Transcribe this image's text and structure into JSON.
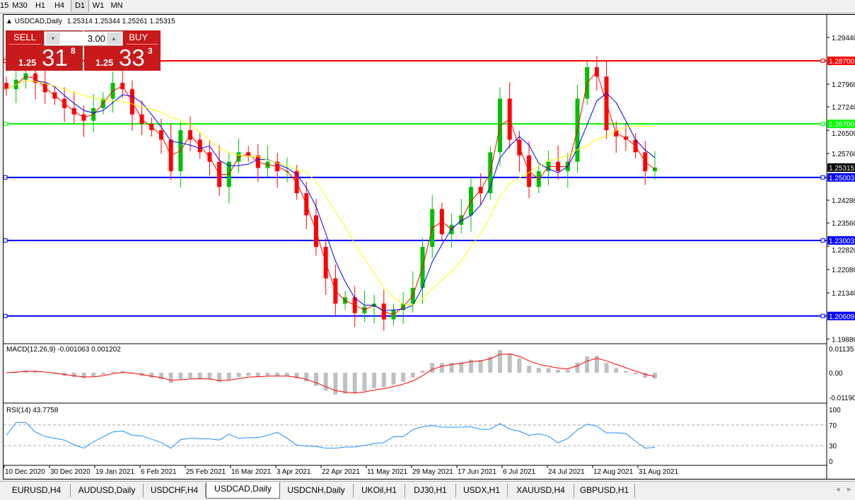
{
  "toolbar": {
    "timeframes": [
      {
        "label": "15"
      },
      {
        "label": "M30"
      },
      {
        "label": "H1"
      },
      {
        "label": "H4"
      },
      {
        "label": "D1",
        "active": true
      },
      {
        "label": "W1"
      },
      {
        "label": "MN"
      }
    ]
  },
  "chart": {
    "title": "USDCAD,Daily",
    "ohlc": "1.25314 1.25344 1.25261 1.25315",
    "trade": {
      "sell_label": "SELL",
      "buy_label": "BUY",
      "lot": "3.00",
      "sell_big": "1.25",
      "sell_digits": "31",
      "sell_sup": "8",
      "buy_big": "1.25",
      "buy_digits": "33",
      "buy_sup": "3"
    },
    "price_ticks": [
      "1.29440",
      "1.27960",
      "1.27240",
      "1.26500",
      "1.25760",
      "1.24280",
      "1.23560",
      "1.22820",
      "1.22080",
      "1.21340",
      "1.19880"
    ],
    "current_price": "1.25315",
    "levels": [
      {
        "price": "1.28700",
        "color": "#ff0000"
      },
      {
        "price": "1.26700",
        "color": "#00ff00"
      },
      {
        "price": "1.25003",
        "color": "#0000ff"
      },
      {
        "price": "1.23003",
        "color": "#0000ff"
      },
      {
        "price": "1.20609",
        "color": "#0000ff"
      }
    ],
    "date_ticks": [
      "10 Dec 2020",
      "30 Dec 2020",
      "19 Jan 2021",
      "6 Feb 2021",
      "25 Feb 2021",
      "16 Mar 2021",
      "3 Apr 2021",
      "22 Apr 2021",
      "11 May 2021",
      "29 May 2021",
      "17 Jun 2021",
      "6 Jul 2021",
      "24 Jul 2021",
      "12 Aug 2021",
      "31 Aug 2021"
    ],
    "colors": {
      "bull": "#00c000",
      "bear": "#ff0000",
      "ma_fast": "#ff0000",
      "ma_mid": "#0000ff",
      "ma_slow": "#ffff00"
    }
  },
  "macd": {
    "label": "MACD(12,26,9) -0.001063 0.001202",
    "ticks": [
      "0.01135",
      "0.00",
      "-0.01190"
    ]
  },
  "rsi": {
    "label": "RSI(14) 43.7758",
    "ticks": [
      "100",
      "70",
      "30",
      "0"
    ]
  },
  "chart_data": {
    "type": "candlestick",
    "symbol": "USDCAD",
    "timeframe": "Daily",
    "price_range": [
      1.1988,
      1.299
    ],
    "approx_closes": [
      1.278,
      1.281,
      1.283,
      1.28,
      1.277,
      1.275,
      1.272,
      1.27,
      1.268,
      1.272,
      1.275,
      1.28,
      1.278,
      1.27,
      1.267,
      1.265,
      1.262,
      1.252,
      1.265,
      1.262,
      1.258,
      1.255,
      1.247,
      1.255,
      1.258,
      1.257,
      1.253,
      1.255,
      1.252,
      1.252,
      1.245,
      1.238,
      1.228,
      1.218,
      1.21,
      1.212,
      1.207,
      1.209,
      1.21,
      1.205,
      1.208,
      1.21,
      1.215,
      1.228,
      1.24,
      1.232,
      1.235,
      1.238,
      1.247,
      1.245,
      1.258,
      1.275,
      1.262,
      1.257,
      1.247,
      1.252,
      1.255,
      1.252,
      1.255,
      1.275,
      1.285,
      1.282,
      1.265,
      1.263,
      1.262,
      1.258,
      1.252,
      1.25315
    ]
  },
  "tabs": [
    {
      "label": "EURUSD,H4"
    },
    {
      "label": "AUDUSD,Daily"
    },
    {
      "label": "USDCHF,H4"
    },
    {
      "label": "USDCAD,Daily",
      "active": true
    },
    {
      "label": "USDCNH,Daily"
    },
    {
      "label": "UKOil,H1"
    },
    {
      "label": "DJ30,H1"
    },
    {
      "label": "USDX,H1"
    },
    {
      "label": "XAUUSD,H4"
    },
    {
      "label": "GBPUSD,H1"
    }
  ]
}
